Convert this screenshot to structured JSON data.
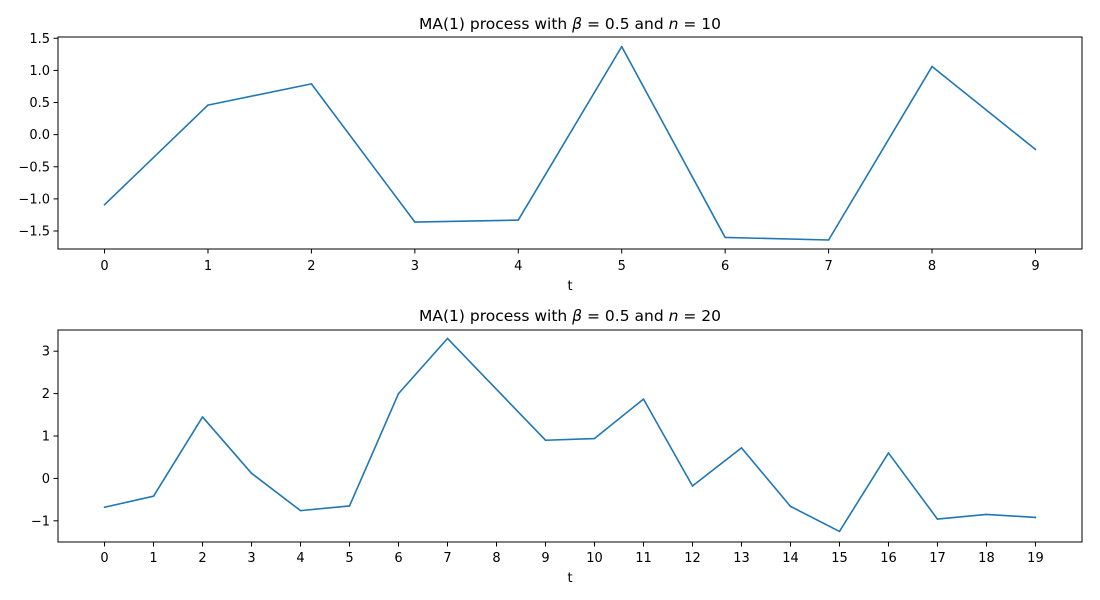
{
  "chart_data": [
    {
      "type": "line",
      "title": "MA(1) process with β = 0.5 and n = 10",
      "title_parts": [
        "MA(1) process with ",
        "β",
        " = 0.5 and ",
        "n",
        " = 10"
      ],
      "xlabel": "t",
      "ylabel": "",
      "x": [
        0,
        1,
        2,
        3,
        4,
        5,
        6,
        7,
        8,
        9
      ],
      "x_tick_labels": [
        "0",
        "1",
        "2",
        "3",
        "4",
        "5",
        "6",
        "7",
        "8",
        "9"
      ],
      "y_ticks": [
        -1.5,
        -1.0,
        -0.5,
        0.0,
        0.5,
        1.0,
        1.5
      ],
      "y_tick_labels": [
        "−1.5",
        "−1.0",
        "−0.5",
        "0.0",
        "0.5",
        "1.0",
        "1.5"
      ],
      "xlim": [
        -0.45,
        9.45
      ],
      "ylim": [
        -1.78,
        1.52
      ],
      "grid": false,
      "series": [
        {
          "values": [
            -1.09,
            0.46,
            0.79,
            -1.36,
            -1.33,
            1.37,
            -1.6,
            -1.64,
            1.06,
            -0.23
          ],
          "color": "#1f77b4"
        }
      ]
    },
    {
      "type": "line",
      "title": "MA(1) process with β = 0.5 and n = 20",
      "title_parts": [
        "MA(1) process with ",
        "β",
        " = 0.5 and ",
        "n",
        " = 20"
      ],
      "xlabel": "t",
      "ylabel": "",
      "x": [
        0,
        1,
        2,
        3,
        4,
        5,
        6,
        7,
        8,
        9,
        10,
        11,
        12,
        13,
        14,
        15,
        16,
        17,
        18,
        19
      ],
      "x_tick_labels": [
        "0",
        "1",
        "2",
        "3",
        "4",
        "5",
        "6",
        "7",
        "8",
        "9",
        "10",
        "11",
        "12",
        "13",
        "14",
        "15",
        "16",
        "17",
        "18",
        "19"
      ],
      "y_ticks": [
        -1,
        0,
        1,
        2,
        3
      ],
      "y_tick_labels": [
        "−1",
        "0",
        "1",
        "2",
        "3"
      ],
      "xlim": [
        -0.95,
        19.95
      ],
      "ylim": [
        -1.5,
        3.5
      ],
      "grid": false,
      "series": [
        {
          "values": [
            -0.68,
            -0.42,
            1.45,
            0.12,
            -0.76,
            -0.65,
            2.0,
            3.3,
            2.1,
            0.9,
            0.94,
            1.87,
            -0.18,
            0.72,
            -0.66,
            -1.25,
            0.6,
            -0.96,
            -0.85,
            -0.92
          ],
          "color": "#1f77b4"
        }
      ]
    }
  ]
}
